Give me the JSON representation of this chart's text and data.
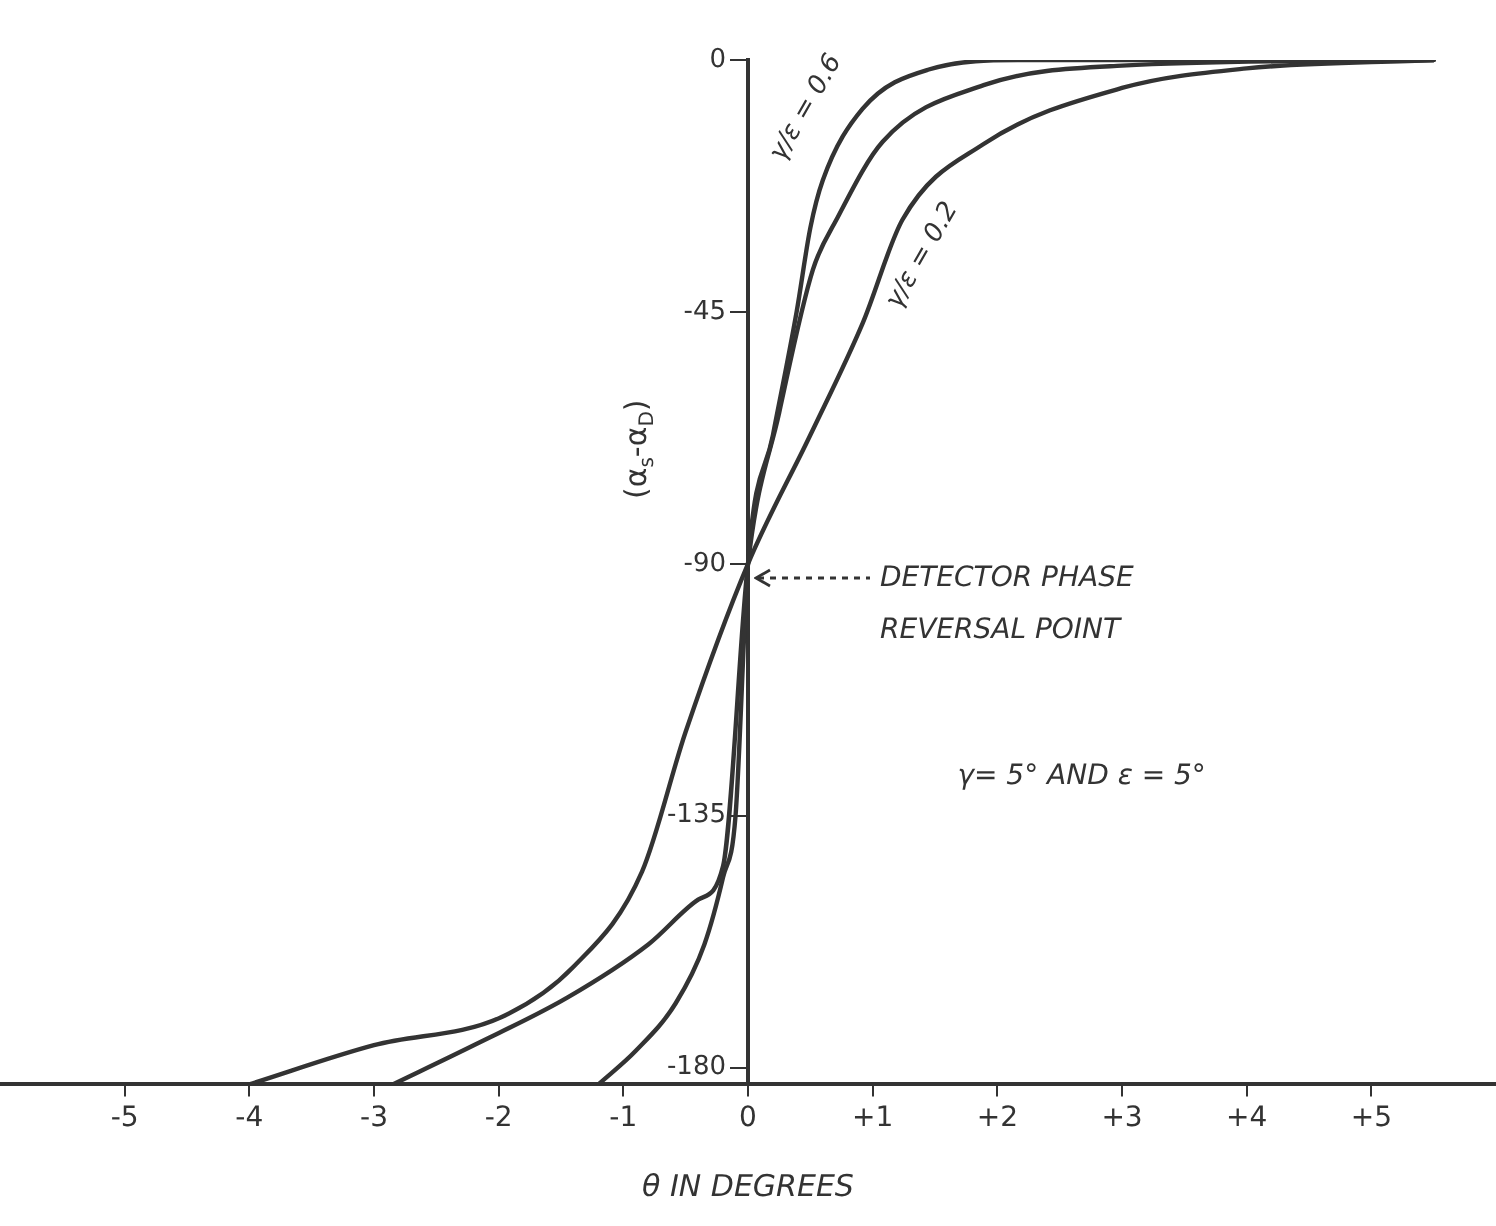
{
  "chart_data": {
    "type": "line",
    "xlabel": "θ IN DEGREES",
    "ylabel": "(α$_{s}$-α$_{D}$)",
    "xlim": [
      -6,
      6
    ],
    "ylim": [
      -183,
      0
    ],
    "xticks": [
      {
        "value": -5,
        "label": "-5"
      },
      {
        "value": -4,
        "label": "-4"
      },
      {
        "value": -3,
        "label": "-3"
      },
      {
        "value": -2,
        "label": "-2"
      },
      {
        "value": -1,
        "label": "-1"
      },
      0,
      {
        "value": 1,
        "label": "+1"
      },
      {
        "value": 2,
        "label": "+2"
      },
      {
        "value": 3,
        "label": "+3"
      },
      {
        "value": 4,
        "label": "+4"
      },
      {
        "value": 5,
        "label": "+5"
      }
    ],
    "yticks": [
      0,
      -45,
      -90,
      -135,
      -180
    ],
    "grid": false,
    "legend": false,
    "marker": "none",
    "line_style": "solid",
    "series": [
      {
        "name": "γ/ε = 0.6",
        "color": "#333333",
        "x": [
          -1.2,
          -0.9,
          -0.58,
          -0.35,
          -0.2,
          -0.1,
          0,
          0.2,
          0.39,
          0.5,
          0.6,
          0.92,
          1.45,
          2.2,
          5.5
        ],
        "values": [
          -183,
          -177,
          -168.5,
          -158,
          -146,
          -135,
          -90,
          -67,
          -45,
          -30,
          -21.5,
          -8.7,
          -1.7,
          0,
          0
        ]
      },
      {
        "color": "#333333",
        "x": [
          -2.85,
          -2.2,
          -1.45,
          -0.8,
          -0.4,
          -0.2,
          0,
          0.25,
          0.52,
          0.71,
          1.08,
          1.89,
          3,
          5.5
        ],
        "values": [
          -183,
          -176,
          -167.5,
          -158,
          -150,
          -144,
          -90,
          -63,
          -37.5,
          -28.5,
          -14.6,
          -4.5,
          -1,
          0
        ]
      },
      {
        "name": "γ/ε = 0.2",
        "color": "#333333",
        "x": [
          -4,
          -3,
          -1.98,
          -1.4,
          -0.85,
          -0.5,
          0,
          0.5,
          0.92,
          1.24,
          1.89,
          3,
          4,
          5.5
        ],
        "values": [
          -183,
          -176,
          -171,
          -162,
          -145,
          -120,
          -90,
          -67,
          -47,
          -28.5,
          -15,
          -5,
          -1.5,
          0
        ]
      }
    ],
    "annotations": [
      "DETECTOR PHASE REVERSAL POINT",
      "γ= 5° AND ε = 5°"
    ]
  }
}
